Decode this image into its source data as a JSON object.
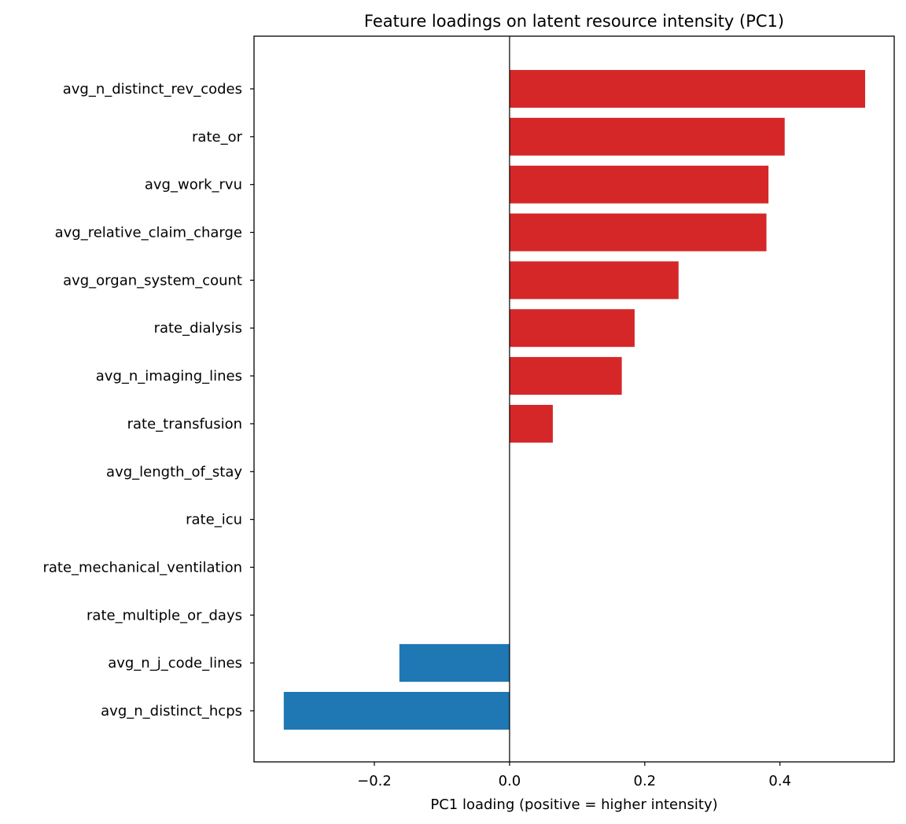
{
  "chart_data": {
    "type": "bar",
    "orientation": "horizontal",
    "title": "Feature loadings on latent resource intensity (PC1)",
    "xlabel": "PC1 loading (positive = higher intensity)",
    "ylabel": "",
    "xlim": [
      -0.378,
      0.569
    ],
    "xticks": [
      -0.2,
      0.0,
      0.2,
      0.4
    ],
    "xtick_labels": [
      "−0.2",
      "0.0",
      "0.2",
      "0.4"
    ],
    "grid": false,
    "zero_line": true,
    "colors": {
      "positive": "#d62728",
      "negative": "#1f77b4"
    },
    "categories": [
      "avg_n_distinct_rev_codes",
      "rate_or",
      "avg_work_rvu",
      "avg_relative_claim_charge",
      "avg_organ_system_count",
      "rate_dialysis",
      "avg_n_imaging_lines",
      "rate_transfusion",
      "avg_length_of_stay",
      "rate_icu",
      "rate_mechanical_ventilation",
      "rate_multiple_or_days",
      "avg_n_j_code_lines",
      "avg_n_distinct_hcps"
    ],
    "values": [
      0.526,
      0.407,
      0.383,
      0.38,
      0.25,
      0.185,
      0.166,
      0.064,
      0.0,
      0.0,
      0.0,
      0.0,
      -0.163,
      -0.334
    ]
  }
}
